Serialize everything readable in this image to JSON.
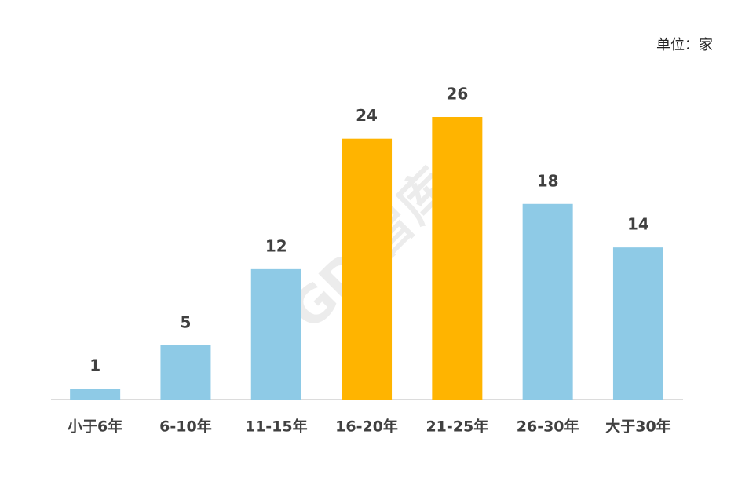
{
  "chart_data": {
    "type": "bar",
    "unit_label": "单位：家",
    "watermark": "GDi智库",
    "categories": [
      "小于6年",
      "6-10年",
      "11-15年",
      "16-20年",
      "21-25年",
      "26-30年",
      "大于30年"
    ],
    "values": [
      1,
      5,
      12,
      24,
      26,
      18,
      14
    ],
    "colors": [
      "#8ecae6",
      "#8ecae6",
      "#8ecae6",
      "#ffb400",
      "#ffb400",
      "#8ecae6",
      "#8ecae6"
    ]
  }
}
